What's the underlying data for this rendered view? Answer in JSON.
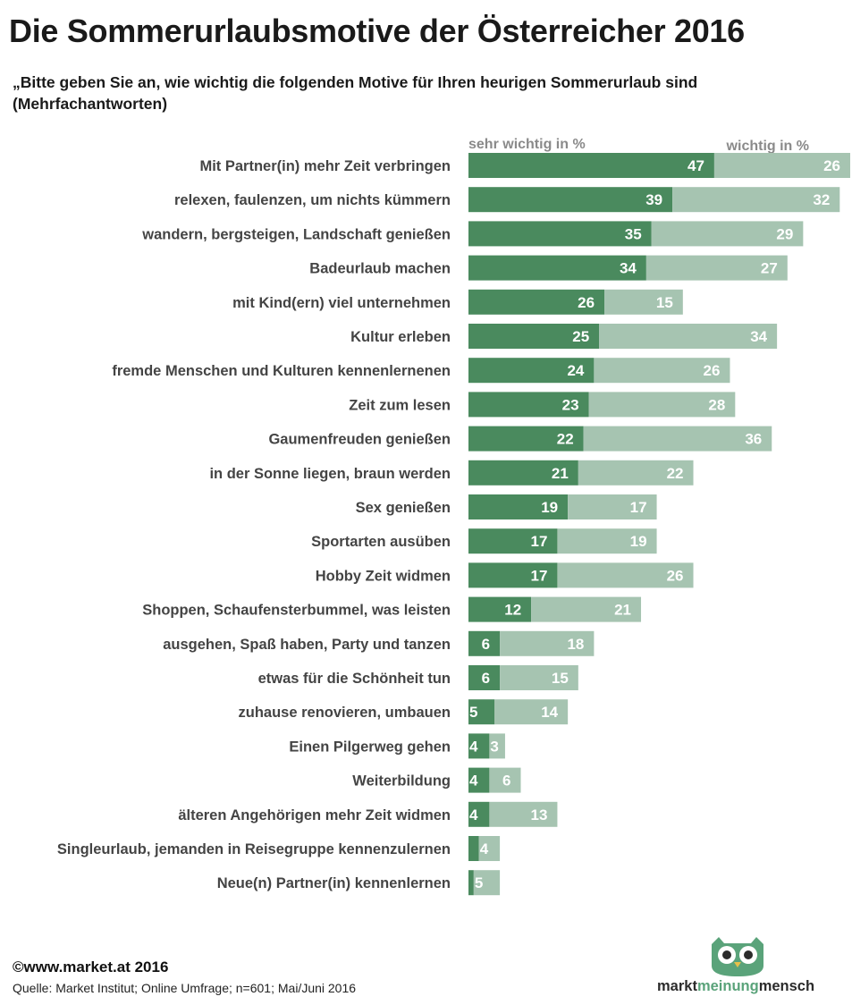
{
  "title": "Die Sommerurlaubsmotive der Österreicher 2016",
  "subtitle": "„Bitte geben Sie an, wie wichtig die folgenden Motive für Ihren heurigen Sommerurlaub sind (Mehrfachantworten)",
  "footer": {
    "copyright": "©www.market.at 2016",
    "source": "Quelle: Market Institut;  Online Umfrage; n=601; Mai/Juni 2016"
  },
  "logo": {
    "icon": "owl-icon",
    "brand_a": "markt",
    "brand_b": "meinung",
    "brand_c": "mensch",
    "accent": "#5aa37a"
  },
  "chart_data": {
    "type": "bar",
    "orientation": "horizontal",
    "stacked": true,
    "grid": false,
    "legend_position": "top",
    "categories": [
      "Mit Partner(in) mehr Zeit verbringen",
      "relexen, faulenzen, um nichts kümmern",
      "wandern, bergsteigen, Landschaft genießen",
      "Badeurlaub machen",
      "mit Kind(ern) viel unternehmen",
      "Kultur erleben",
      "fremde Menschen und Kulturen kennenlernenen",
      "Zeit zum lesen",
      "Gaumenfreuden genießen",
      "in der Sonne liegen, braun werden",
      "Sex genießen",
      "Sportarten ausüben",
      "Hobby Zeit widmen",
      "Shoppen, Schaufensterbummel, was leisten",
      "ausgehen, Spaß haben, Party und tanzen",
      "etwas für die Schönheit tun",
      "zuhause renovieren, umbauen",
      "Einen Pilgerweg gehen",
      "Weiterbildung",
      "älteren Angehörigen mehr Zeit widmen",
      "Singleurlaub, jemanden in Reisegruppe kennenzulernen",
      "Neue(n) Partner(in) kennenlernen"
    ],
    "series": [
      {
        "name": "sehr wichtig in %",
        "color": "#4a8a5e",
        "values": [
          47,
          39,
          35,
          34,
          26,
          25,
          24,
          23,
          22,
          21,
          19,
          17,
          17,
          12,
          6,
          6,
          5,
          4,
          4,
          4,
          2,
          1
        ],
        "labels": [
          "47",
          "39",
          "35",
          "34",
          "26",
          "25",
          "24",
          "23",
          "22",
          "21",
          "19",
          "17",
          "17",
          "12",
          "6",
          "6",
          "5",
          "4",
          "4",
          "4",
          "",
          ""
        ]
      },
      {
        "name": "wichtig in %",
        "color": "#a6c4b1",
        "values": [
          26,
          32,
          29,
          27,
          15,
          34,
          26,
          28,
          36,
          22,
          17,
          19,
          26,
          21,
          18,
          15,
          14,
          3,
          6,
          13,
          4,
          5
        ],
        "labels": [
          "26",
          "32",
          "29",
          "27",
          "15",
          "34",
          "26",
          "28",
          "36",
          "22",
          "17",
          "19",
          "26",
          "21",
          "18",
          "15",
          "14",
          "3",
          "6",
          "13",
          "4",
          "5"
        ]
      }
    ],
    "xlim": [
      0,
      73
    ]
  }
}
